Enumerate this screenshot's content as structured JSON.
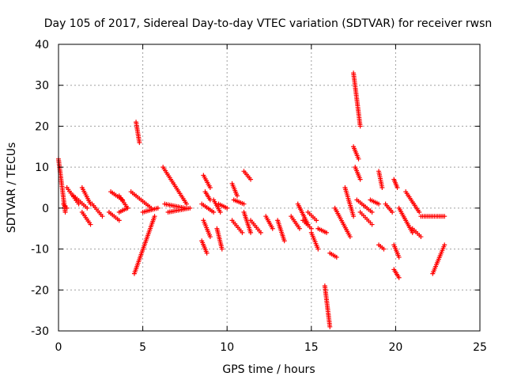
{
  "chart_data": {
    "type": "scatter",
    "title": "Day 105 of 2017, Sidereal Day-to-day VTEC variation (SDTVAR) for receiver rwsn",
    "xlabel": "GPS time / hours",
    "ylabel": "SDTVAR / TECUs",
    "xlim": [
      0,
      25
    ],
    "ylim": [
      -30,
      40
    ],
    "xticks": [
      "0",
      "5",
      "10",
      "15",
      "20",
      "25"
    ],
    "yticks": [
      "-30",
      "-20",
      "-10",
      "0",
      "10",
      "20",
      "30",
      "40"
    ],
    "grid": true,
    "marker": "+",
    "series_color": "#ff0000",
    "segments": [
      {
        "x0": 0.0,
        "x1": 0.4,
        "y0": 12,
        "y1": -1
      },
      {
        "x0": 0.3,
        "x1": 0.5,
        "y0": 1,
        "y1": 0
      },
      {
        "x0": 0.5,
        "x1": 1.2,
        "y0": 5,
        "y1": 1
      },
      {
        "x0": 0.9,
        "x1": 1.7,
        "y0": 3,
        "y1": 0
      },
      {
        "x0": 1.4,
        "x1": 1.9,
        "y0": 5,
        "y1": 1
      },
      {
        "x0": 1.4,
        "x1": 1.9,
        "y0": -1,
        "y1": -4
      },
      {
        "x0": 2.0,
        "x1": 2.6,
        "y0": 1,
        "y1": -2
      },
      {
        "x0": 3.1,
        "x1": 3.8,
        "y0": 4,
        "y1": 2
      },
      {
        "x0": 3.0,
        "x1": 3.6,
        "y0": -1,
        "y1": -3
      },
      {
        "x0": 3.6,
        "x1": 4.1,
        "y0": 3,
        "y1": 0
      },
      {
        "x0": 3.6,
        "x1": 4.1,
        "y0": -1,
        "y1": 0
      },
      {
        "x0": 4.3,
        "x1": 5.5,
        "y0": 4,
        "y1": 0
      },
      {
        "x0": 4.6,
        "x1": 4.8,
        "y0": 21,
        "y1": 16
      },
      {
        "x0": 4.5,
        "x1": 5.7,
        "y0": -16,
        "y1": -2
      },
      {
        "x0": 5.0,
        "x1": 5.9,
        "y0": -1,
        "y1": 0
      },
      {
        "x0": 6.2,
        "x1": 7.6,
        "y0": 10,
        "y1": 1
      },
      {
        "x0": 6.3,
        "x1": 7.5,
        "y0": 1,
        "y1": 0
      },
      {
        "x0": 6.5,
        "x1": 7.8,
        "y0": -1,
        "y1": 0
      },
      {
        "x0": 8.6,
        "x1": 9.0,
        "y0": 8,
        "y1": 5
      },
      {
        "x0": 8.7,
        "x1": 9.0,
        "y0": 4,
        "y1": 2
      },
      {
        "x0": 8.5,
        "x1": 9.2,
        "y0": 1,
        "y1": -1
      },
      {
        "x0": 8.6,
        "x1": 9.0,
        "y0": -3,
        "y1": -7
      },
      {
        "x0": 8.5,
        "x1": 8.8,
        "y0": -8,
        "y1": -11
      },
      {
        "x0": 9.2,
        "x1": 9.6,
        "y0": 2,
        "y1": -1
      },
      {
        "x0": 9.4,
        "x1": 9.7,
        "y0": -5,
        "y1": -10
      },
      {
        "x0": 9.5,
        "x1": 10.0,
        "y0": 1,
        "y1": 0
      },
      {
        "x0": 10.3,
        "x1": 10.6,
        "y0": 6,
        "y1": 3
      },
      {
        "x0": 10.3,
        "x1": 10.9,
        "y0": -3,
        "y1": -6
      },
      {
        "x0": 10.4,
        "x1": 11.0,
        "y0": 2,
        "y1": 1
      },
      {
        "x0": 11.0,
        "x1": 11.4,
        "y0": 9,
        "y1": 7
      },
      {
        "x0": 11.0,
        "x1": 11.4,
        "y0": -1,
        "y1": -6
      },
      {
        "x0": 11.4,
        "x1": 12.0,
        "y0": -3,
        "y1": -6
      },
      {
        "x0": 12.3,
        "x1": 12.7,
        "y0": -2,
        "y1": -5
      },
      {
        "x0": 13.0,
        "x1": 13.4,
        "y0": -3,
        "y1": -8
      },
      {
        "x0": 13.8,
        "x1": 14.3,
        "y0": -2,
        "y1": -5
      },
      {
        "x0": 14.2,
        "x1": 14.8,
        "y0": 1,
        "y1": -4
      },
      {
        "x0": 14.5,
        "x1": 15.0,
        "y0": -3,
        "y1": -5
      },
      {
        "x0": 15.0,
        "x1": 15.4,
        "y0": -6,
        "y1": -10
      },
      {
        "x0": 14.8,
        "x1": 15.3,
        "y0": -1,
        "y1": -3
      },
      {
        "x0": 15.4,
        "x1": 15.9,
        "y0": -5,
        "y1": -6
      },
      {
        "x0": 15.8,
        "x1": 16.1,
        "y0": -19,
        "y1": -29
      },
      {
        "x0": 16.1,
        "x1": 16.5,
        "y0": -11,
        "y1": -12
      },
      {
        "x0": 16.4,
        "x1": 17.3,
        "y0": 0,
        "y1": -7
      },
      {
        "x0": 17.0,
        "x1": 17.5,
        "y0": 5,
        "y1": -2
      },
      {
        "x0": 17.5,
        "x1": 17.9,
        "y0": 33,
        "y1": 20
      },
      {
        "x0": 17.5,
        "x1": 17.8,
        "y0": 15,
        "y1": 12
      },
      {
        "x0": 17.6,
        "x1": 17.9,
        "y0": 10,
        "y1": 7
      },
      {
        "x0": 17.7,
        "x1": 18.6,
        "y0": 2,
        "y1": -1
      },
      {
        "x0": 17.9,
        "x1": 18.6,
        "y0": -1,
        "y1": -4
      },
      {
        "x0": 18.5,
        "x1": 19.0,
        "y0": 2,
        "y1": 1
      },
      {
        "x0": 19.0,
        "x1": 19.2,
        "y0": 9,
        "y1": 5
      },
      {
        "x0": 19.0,
        "x1": 19.3,
        "y0": -9,
        "y1": -10
      },
      {
        "x0": 19.4,
        "x1": 19.8,
        "y0": 1,
        "y1": -1
      },
      {
        "x0": 19.9,
        "x1": 20.1,
        "y0": 7,
        "y1": 5
      },
      {
        "x0": 19.9,
        "x1": 20.2,
        "y0": -9,
        "y1": -12
      },
      {
        "x0": 19.9,
        "x1": 20.2,
        "y0": -15,
        "y1": -17
      },
      {
        "x0": 20.2,
        "x1": 21.0,
        "y0": 0,
        "y1": -6
      },
      {
        "x0": 20.6,
        "x1": 21.4,
        "y0": 4,
        "y1": -1
      },
      {
        "x0": 21.0,
        "x1": 21.5,
        "y0": -5,
        "y1": -7
      },
      {
        "x0": 21.5,
        "x1": 22.9,
        "y0": -2,
        "y1": -2
      },
      {
        "x0": 22.2,
        "x1": 22.9,
        "y0": -16,
        "y1": -9
      }
    ]
  }
}
